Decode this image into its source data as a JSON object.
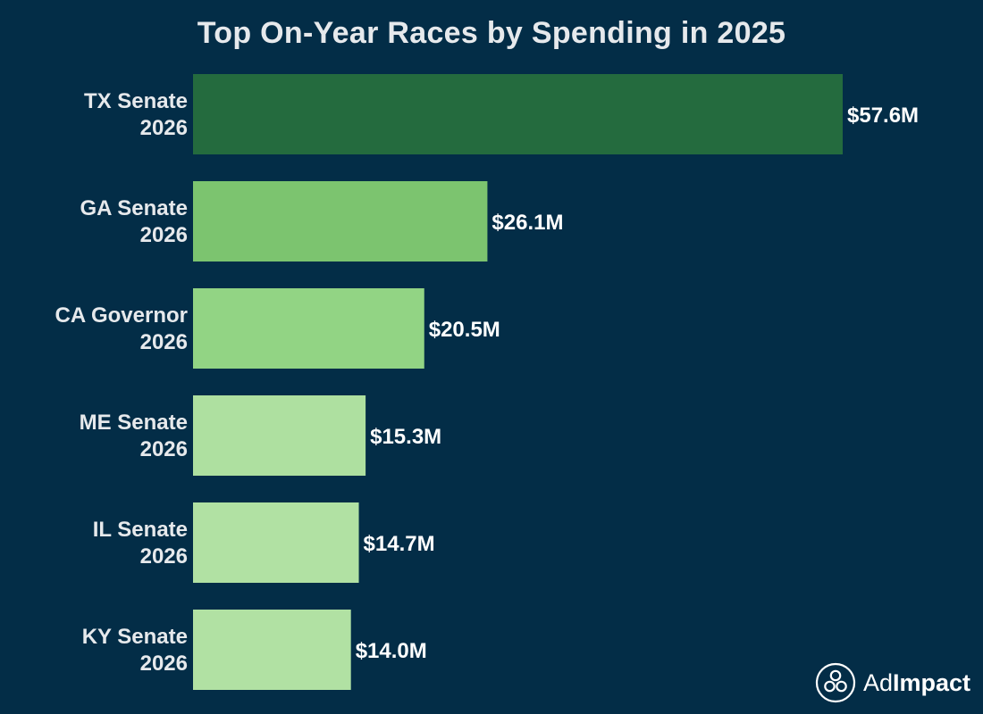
{
  "chart_data": {
    "type": "bar",
    "orientation": "horizontal",
    "title": "Top On-Year Races by Spending in 2025",
    "xlabel": "",
    "ylabel": "",
    "categories": [
      [
        "TX Senate",
        "2026"
      ],
      [
        "GA Senate",
        "2026"
      ],
      [
        "CA Governor",
        "2026"
      ],
      [
        "ME Senate",
        "2026"
      ],
      [
        "IL Senate",
        "2026"
      ],
      [
        "KY Senate",
        "2026"
      ]
    ],
    "values": [
      57.6,
      26.1,
      20.5,
      15.3,
      14.7,
      14.0
    ],
    "value_labels": [
      "$57.6M",
      "$26.1M",
      "$20.5M",
      "$15.3M",
      "$14.7M",
      "$14.0M"
    ],
    "units": "$M",
    "xlim": [
      0,
      57.6
    ],
    "grid": false,
    "bar_colors": [
      "#246b3e",
      "#7cc46f",
      "#92d484",
      "#aee0a0",
      "#b1e1a3",
      "#b1e1a3"
    ]
  },
  "logo": {
    "prefix": "Ad",
    "suffix": "Impact"
  },
  "colors": {
    "background": "#032d47",
    "text": "#e6e9ec"
  }
}
